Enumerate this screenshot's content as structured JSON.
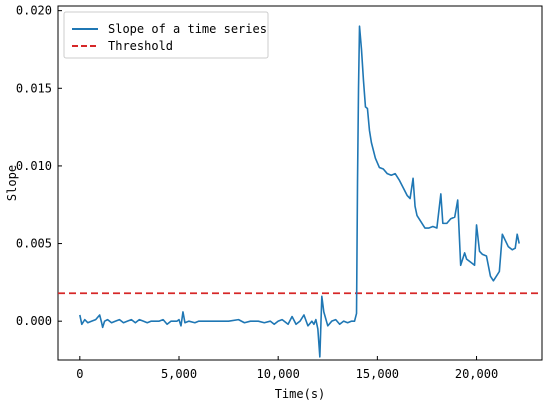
{
  "chart_data": {
    "type": "line",
    "title": "",
    "xlabel": "Time(s)",
    "ylabel": "Slope",
    "xlim": [
      -1100,
      23300
    ],
    "ylim": [
      -0.0025,
      0.0203
    ],
    "x_ticks": [
      0,
      5000,
      10000,
      15000,
      20000
    ],
    "x_tick_labels": [
      "0",
      "5,000",
      "10,000",
      "15,000",
      "20,000"
    ],
    "y_ticks": [
      0.0,
      0.005,
      0.01,
      0.015,
      0.02
    ],
    "y_tick_labels": [
      "0.000",
      "0.005",
      "0.010",
      "0.015",
      "0.020"
    ],
    "grid": false,
    "legend_position": "top-left",
    "series": [
      {
        "name": "Slope of a time series",
        "color": "#1f77b4",
        "style": "solid",
        "points": [
          [
            0,
            0.0004
          ],
          [
            100,
            -0.0002
          ],
          [
            250,
            0.0001
          ],
          [
            400,
            -0.0001
          ],
          [
            600,
            0.0
          ],
          [
            800,
            0.0001
          ],
          [
            1000,
            0.0004
          ],
          [
            1100,
            -0.0001
          ],
          [
            1150,
            -0.0004
          ],
          [
            1250,
            0.0
          ],
          [
            1400,
            0.0001
          ],
          [
            1600,
            -0.0001
          ],
          [
            1800,
            0.0
          ],
          [
            2000,
            0.0001
          ],
          [
            2200,
            -0.0001
          ],
          [
            2400,
            0.0
          ],
          [
            2600,
            0.0001
          ],
          [
            2800,
            -0.0001
          ],
          [
            3000,
            0.0001
          ],
          [
            3200,
            0.0
          ],
          [
            3400,
            -0.0001
          ],
          [
            3600,
            0.0
          ],
          [
            3800,
            0.0
          ],
          [
            4000,
            0.0
          ],
          [
            4200,
            0.0001
          ],
          [
            4400,
            -0.0002
          ],
          [
            4600,
            0.0
          ],
          [
            4900,
            0.0
          ],
          [
            5000,
            0.0001
          ],
          [
            5100,
            -0.0003
          ],
          [
            5200,
            0.0006
          ],
          [
            5300,
            -0.0001
          ],
          [
            5500,
            0.0
          ],
          [
            5800,
            -0.0001
          ],
          [
            6000,
            0.0
          ],
          [
            6500,
            0.0
          ],
          [
            7000,
            0.0
          ],
          [
            7500,
            0.0
          ],
          [
            8000,
            0.0001
          ],
          [
            8300,
            -0.0001
          ],
          [
            8600,
            0.0
          ],
          [
            9000,
            0.0
          ],
          [
            9300,
            -0.0001
          ],
          [
            9600,
            0.0
          ],
          [
            9800,
            -0.0002
          ],
          [
            10000,
            0.0
          ],
          [
            10200,
            0.0001
          ],
          [
            10500,
            -0.0002
          ],
          [
            10700,
            0.0003
          ],
          [
            10900,
            -0.0002
          ],
          [
            11100,
            0.0
          ],
          [
            11300,
            0.0004
          ],
          [
            11500,
            -0.0003
          ],
          [
            11700,
            0.0
          ],
          [
            11800,
            -0.0002
          ],
          [
            11900,
            0.0001
          ],
          [
            12000,
            -0.0005
          ],
          [
            12100,
            -0.0023
          ],
          [
            12200,
            0.0016
          ],
          [
            12300,
            0.0006
          ],
          [
            12500,
            -0.0003
          ],
          [
            12700,
            0.0
          ],
          [
            12900,
            0.0001
          ],
          [
            13100,
            -0.0002
          ],
          [
            13300,
            0.0
          ],
          [
            13500,
            -0.0001
          ],
          [
            13700,
            0.0
          ],
          [
            13850,
            0.0
          ],
          [
            13950,
            0.0005
          ],
          [
            14000,
            0.009
          ],
          [
            14050,
            0.015
          ],
          [
            14100,
            0.019
          ],
          [
            14200,
            0.0175
          ],
          [
            14300,
            0.0155
          ],
          [
            14400,
            0.0138
          ],
          [
            14500,
            0.0137
          ],
          [
            14600,
            0.0123
          ],
          [
            14700,
            0.0115
          ],
          [
            14900,
            0.0105
          ],
          [
            15100,
            0.0099
          ],
          [
            15300,
            0.0098
          ],
          [
            15500,
            0.0095
          ],
          [
            15700,
            0.0094
          ],
          [
            15900,
            0.0095
          ],
          [
            16100,
            0.0091
          ],
          [
            16300,
            0.0086
          ],
          [
            16500,
            0.0081
          ],
          [
            16650,
            0.0079
          ],
          [
            16800,
            0.0092
          ],
          [
            16900,
            0.0074
          ],
          [
            17000,
            0.0068
          ],
          [
            17200,
            0.0064
          ],
          [
            17400,
            0.006
          ],
          [
            17600,
            0.006
          ],
          [
            17800,
            0.0061
          ],
          [
            18000,
            0.006
          ],
          [
            18200,
            0.0082
          ],
          [
            18300,
            0.0063
          ],
          [
            18500,
            0.0063
          ],
          [
            18700,
            0.0066
          ],
          [
            18900,
            0.0067
          ],
          [
            19050,
            0.0078
          ],
          [
            19200,
            0.0036
          ],
          [
            19400,
            0.0044
          ],
          [
            19500,
            0.004
          ],
          [
            19700,
            0.0038
          ],
          [
            19900,
            0.0036
          ],
          [
            20000,
            0.0062
          ],
          [
            20150,
            0.0045
          ],
          [
            20300,
            0.0043
          ],
          [
            20500,
            0.0042
          ],
          [
            20700,
            0.0029
          ],
          [
            20850,
            0.0026
          ],
          [
            21000,
            0.0029
          ],
          [
            21150,
            0.0032
          ],
          [
            21300,
            0.0056
          ],
          [
            21450,
            0.0052
          ],
          [
            21600,
            0.0048
          ],
          [
            21800,
            0.0046
          ],
          [
            21950,
            0.0047
          ],
          [
            22050,
            0.0056
          ],
          [
            22150,
            0.005
          ]
        ]
      },
      {
        "name": "Threshold",
        "color": "#d62728",
        "style": "dashed",
        "points": [
          [
            -1100,
            0.0018
          ],
          [
            23300,
            0.0018
          ]
        ]
      }
    ]
  }
}
